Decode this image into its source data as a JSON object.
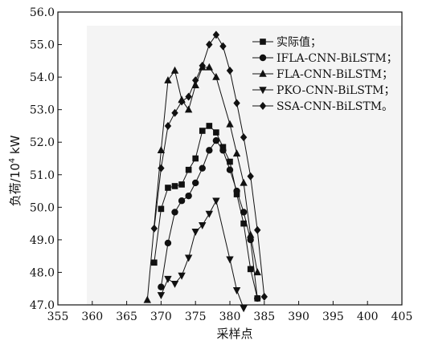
{
  "chart_data": {
    "type": "line",
    "title": "",
    "xlabel": "采样点",
    "ylabel_main": "负荷/10",
    "ylabel_sup": "4",
    "ylabel_unit": " kW",
    "xlim": [
      355,
      405
    ],
    "ylim": [
      47.0,
      56.0
    ],
    "xticks": [
      355,
      360,
      365,
      370,
      375,
      380,
      385,
      390,
      395,
      400,
      405
    ],
    "yticks": [
      47.0,
      48.0,
      49.0,
      50.0,
      51.0,
      52.0,
      53.0,
      54.0,
      55.0,
      56.0
    ],
    "ytick_labels": [
      "47.0",
      "48.0",
      "49.0",
      "50.0",
      "51.0",
      "52.0",
      "53.0",
      "54.0",
      "55.0",
      "56.0"
    ],
    "grid": false,
    "legend_position": "top-right",
    "series": [
      {
        "name": "实际值；",
        "marker": "square",
        "x": [
          369,
          370,
          371,
          372,
          373,
          374,
          375,
          376,
          377,
          378,
          379,
          380,
          381,
          382,
          383,
          384
        ],
        "y": [
          48.3,
          49.95,
          50.6,
          50.65,
          50.7,
          51.15,
          51.5,
          52.35,
          52.5,
          52.3,
          51.85,
          51.4,
          50.4,
          49.5,
          48.1,
          47.2
        ]
      },
      {
        "name": "IFLA-CNN-BiLSTM；",
        "marker": "circle",
        "x": [
          370,
          371,
          372,
          373,
          374,
          375,
          376,
          377,
          378,
          379,
          380,
          381,
          382,
          383,
          384
        ],
        "y": [
          47.55,
          48.9,
          49.85,
          50.2,
          50.35,
          50.75,
          51.2,
          51.75,
          52.05,
          51.75,
          51.15,
          50.5,
          49.85,
          49.0,
          47.2
        ]
      },
      {
        "name": "FLA-CNN-BiLSTM；",
        "marker": "triangle-up",
        "x": [
          368,
          370,
          371,
          372,
          373,
          374,
          375,
          376,
          377,
          378,
          380,
          381,
          382,
          383,
          384
        ],
        "y": [
          47.15,
          51.75,
          53.9,
          54.2,
          53.3,
          53.0,
          53.75,
          54.3,
          54.3,
          54.0,
          52.55,
          51.65,
          50.75,
          49.15,
          48.0
        ]
      },
      {
        "name": "PKO-CNN-BiLSTM；",
        "marker": "triangle-down",
        "x": [
          370,
          371,
          372,
          373,
          374,
          375,
          376,
          377,
          378,
          380,
          381,
          382
        ],
        "y": [
          47.3,
          47.8,
          47.65,
          47.9,
          48.45,
          49.25,
          49.45,
          49.8,
          50.2,
          48.4,
          47.45,
          46.9
        ]
      },
      {
        "name": "SSA-CNN-BiLSTM。",
        "marker": "diamond",
        "x": [
          369,
          370,
          371,
          372,
          373,
          374,
          375,
          376,
          377,
          378,
          379,
          380,
          381,
          382,
          383,
          384,
          385
        ],
        "y": [
          49.35,
          51.2,
          52.5,
          52.9,
          53.25,
          53.4,
          53.9,
          54.35,
          55.0,
          55.3,
          54.95,
          54.2,
          53.2,
          52.15,
          50.95,
          49.3,
          47.25
        ]
      }
    ]
  }
}
